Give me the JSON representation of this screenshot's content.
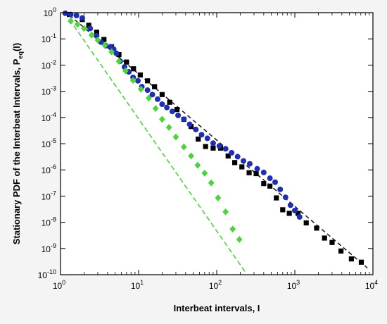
{
  "chart_data": {
    "type": "scatter",
    "xlabel": "Interbeat intervals, I",
    "ylabel_main": "Stationary PDF of the Interbeat Intervals, P",
    "ylabel_sub": "eq",
    "ylabel_tail": "(I)",
    "x_scale": "log",
    "y_scale": "log",
    "xlim": [
      1,
      10000
    ],
    "ylim": [
      1e-10,
      1
    ],
    "grid": false,
    "legend": "none",
    "x_ticks": [
      {
        "value": 1,
        "base": "10",
        "exp": "0"
      },
      {
        "value": 10,
        "base": "10",
        "exp": "1"
      },
      {
        "value": 100,
        "base": "10",
        "exp": "2"
      },
      {
        "value": 1000,
        "base": "10",
        "exp": "3"
      },
      {
        "value": 10000,
        "base": "10",
        "exp": "4"
      }
    ],
    "y_ticks": [
      {
        "value": 1,
        "base": "10",
        "exp": "0"
      },
      {
        "value": 0.1,
        "base": "10",
        "exp": "-1"
      },
      {
        "value": 0.01,
        "base": "10",
        "exp": "-2"
      },
      {
        "value": 0.001,
        "base": "10",
        "exp": "-3"
      },
      {
        "value": 0.0001,
        "base": "10",
        "exp": "-4"
      },
      {
        "value": 1e-05,
        "base": "10",
        "exp": "-5"
      },
      {
        "value": 1e-06,
        "base": "10",
        "exp": "-6"
      },
      {
        "value": 1e-07,
        "base": "10",
        "exp": "-7"
      },
      {
        "value": 1e-08,
        "base": "10",
        "exp": "-8"
      },
      {
        "value": 1e-09,
        "base": "10",
        "exp": "-9"
      },
      {
        "value": 1e-10,
        "base": "10",
        "exp": "-10"
      }
    ],
    "series": [
      {
        "marker": "square",
        "color": "#000000",
        "points": [
          [
            1.3,
            0.85
          ],
          [
            1.9,
            0.55
          ],
          [
            2.3,
            0.33
          ],
          [
            2.9,
            0.18
          ],
          [
            3.6,
            0.095
          ],
          [
            4.5,
            0.05
          ],
          [
            5.6,
            0.025
          ],
          [
            7.0,
            0.013
          ],
          [
            8.6,
            0.0072
          ],
          [
            10.5,
            0.0042
          ],
          [
            13,
            0.0025
          ],
          [
            16,
            0.0015
          ],
          [
            20,
            0.00075
          ],
          [
            25,
            0.00038
          ],
          [
            31,
            0.0002
          ],
          [
            38,
            8.5e-05
          ],
          [
            47,
            4.5e-05
          ],
          [
            58,
            1.5e-05
          ],
          [
            72,
            7.8e-06
          ],
          [
            90,
            6.8e-06
          ],
          [
            112,
            6.8e-06
          ],
          [
            140,
            3.4e-06
          ],
          [
            170,
            1.9e-06
          ],
          [
            210,
            1.3e-06
          ],
          [
            260,
            7.8e-07
          ],
          [
            320,
            7.2e-07
          ],
          [
            400,
            3e-07
          ],
          [
            480,
            2.4e-07
          ],
          [
            580,
            8.5e-08
          ],
          [
            700,
            3e-08
          ],
          [
            850,
            2.2e-08
          ],
          [
            1100,
            2.2e-08
          ],
          [
            1400,
            9.5e-09
          ],
          [
            1900,
            6e-09
          ],
          [
            2400,
            2.5e-09
          ],
          [
            3000,
            1.7e-09
          ],
          [
            3900,
            8e-10
          ],
          [
            5300,
            4e-10
          ],
          [
            7100,
            3e-10
          ]
        ]
      },
      {
        "marker": "circle",
        "color": "#1f2fb0",
        "points": [
          [
            1.15,
            0.95
          ],
          [
            1.35,
            0.85
          ],
          [
            1.6,
            0.78
          ],
          [
            1.9,
            0.63
          ],
          [
            2.4,
            0.25
          ],
          [
            2.9,
            0.13
          ],
          [
            3.3,
            0.075
          ],
          [
            3.8,
            0.055
          ],
          [
            4.4,
            0.05
          ],
          [
            4.8,
            0.04
          ],
          [
            5.2,
            0.028
          ],
          [
            5.8,
            0.014
          ],
          [
            6.6,
            0.0085
          ],
          [
            7.5,
            0.0055
          ],
          [
            8.5,
            0.0034
          ],
          [
            9.8,
            0.0025
          ],
          [
            11,
            0.0015
          ],
          [
            13,
            0.0011
          ],
          [
            15,
            0.00075
          ],
          [
            17.5,
            0.0005
          ],
          [
            20,
            0.00032
          ],
          [
            23,
            0.00024
          ],
          [
            27,
            0.00017
          ],
          [
            32,
            0.00012
          ],
          [
            38,
            8.5e-05
          ],
          [
            45,
            5.5e-05
          ],
          [
            54,
            3.5e-05
          ],
          [
            64,
            2.2e-05
          ],
          [
            76,
            1.6e-05
          ],
          [
            90,
            1.05e-05
          ],
          [
            108,
            8.2e-06
          ],
          [
            130,
            6.4e-06
          ],
          [
            155,
            4.5e-06
          ],
          [
            185,
            3.2e-06
          ],
          [
            220,
            2.2e-06
          ],
          [
            265,
            1.7e-06
          ],
          [
            330,
            1.1e-06
          ],
          [
            400,
            8e-07
          ],
          [
            480,
            4.8e-07
          ],
          [
            560,
            3.4e-07
          ],
          [
            650,
            1.8e-07
          ],
          [
            760,
            9e-08
          ],
          [
            880,
            4.5e-08
          ],
          [
            1000,
            2.8e-08
          ],
          [
            1150,
            1.6e-08
          ]
        ]
      },
      {
        "marker": "diamond",
        "color": "#4cd43c",
        "points": [
          [
            1.35,
            0.48
          ],
          [
            1.65,
            0.36
          ],
          [
            2.0,
            0.25
          ],
          [
            2.5,
            0.14
          ],
          [
            3.0,
            0.09
          ],
          [
            3.7,
            0.057
          ],
          [
            4.5,
            0.032
          ],
          [
            5.6,
            0.014
          ],
          [
            6.8,
            0.006
          ],
          [
            8.5,
            0.0026
          ],
          [
            10.7,
            0.0012
          ],
          [
            13.5,
            0.00055
          ],
          [
            16.5,
            0.00022
          ],
          [
            20,
            8.5e-05
          ],
          [
            24.5,
            4.2e-05
          ],
          [
            30,
            1.8e-05
          ],
          [
            38,
            7.5e-06
          ],
          [
            47,
            3.4e-06
          ],
          [
            57,
            1.5e-06
          ],
          [
            70,
            7.5e-07
          ],
          [
            85,
            3.2e-07
          ],
          [
            104,
            8.5e-08
          ],
          [
            130,
            2.5e-08
          ],
          [
            160,
            5.5e-09
          ],
          [
            195,
            2.2e-09
          ]
        ]
      }
    ],
    "fit_lines": [
      {
        "color": "#222222",
        "dash": "6,4",
        "from": [
          1.3,
          0.8
        ],
        "to": [
          8500,
          1.8e-10
        ]
      },
      {
        "color": "#4cd43c",
        "dash": "7,4",
        "from": [
          1.3,
          0.55
        ],
        "to": [
          240,
          1.1e-10
        ]
      }
    ]
  }
}
